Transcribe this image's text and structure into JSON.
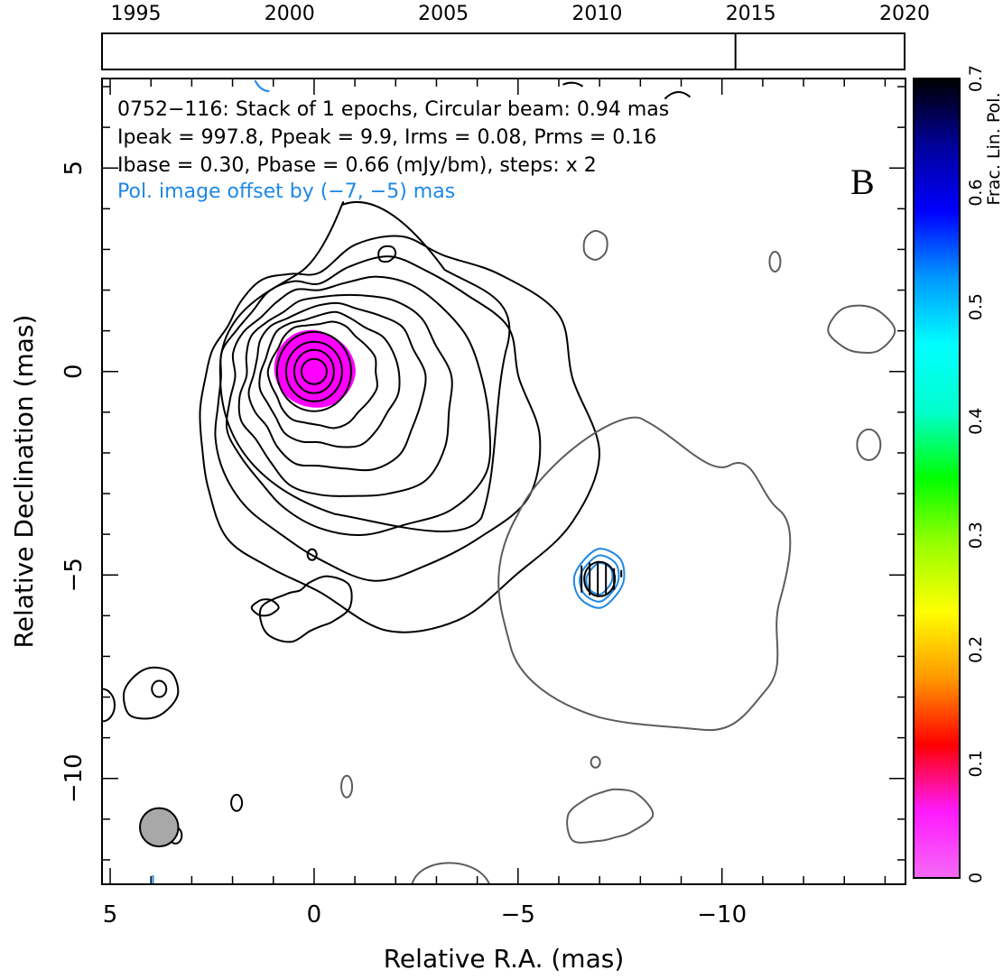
{
  "timeline": {
    "tick_labels": [
      "1995",
      "2000",
      "2005",
      "2010",
      "2015",
      "2020"
    ],
    "tick_years": [
      1995,
      2000,
      2005,
      2010,
      2015,
      2020
    ],
    "range": [
      1993.9,
      2020.0
    ],
    "epoch_years": [
      2014.5
    ]
  },
  "annotation": {
    "line1": "0752−116: Stack of 1 epochs, Circular beam: 0.94 mas",
    "line2": "Ipeak = 997.8, Ppeak = 9.9, Irms = 0.08, Prms = 0.16",
    "line3": "Ibase = 0.30, Pbase = 0.66 (mJy/bm), steps: x 2",
    "line4": "Pol. image offset by (−7, −5) mas",
    "panel_letter": "B"
  },
  "colors": {
    "total_intensity_contours": "#000000",
    "offset_image_contours": "#5c5c5c",
    "polarization_contours": "#1e88e5",
    "offset_text": "#1e88e5",
    "core_fill": "#ff00ff",
    "beam_fill": "#a8a8a8"
  },
  "colorbar": {
    "label": "Frac. Lin. Pol.",
    "tick_labels": [
      "0",
      "0.1",
      "0.2",
      "0.3",
      "0.4",
      "0.5",
      "0.6",
      "0.7"
    ],
    "range": [
      0,
      0.7
    ],
    "colormap": [
      "#f569f5",
      "#ff1aff",
      "#ff0000",
      "#ff9900",
      "#ffff00",
      "#99ff00",
      "#00ff00",
      "#00ffcc",
      "#00ffff",
      "#0099ff",
      "#0000ff",
      "#000099",
      "#000000"
    ]
  },
  "chart_data": {
    "type": "contour",
    "title": "",
    "xlabel": "Relative R.A. (mas)",
    "ylabel": "Relative Declination (mas)",
    "x_tick_labels": [
      "5",
      "0",
      "−5",
      "−10"
    ],
    "x_ticks": [
      5,
      0,
      -5,
      -10
    ],
    "y_tick_labels": [
      "5",
      "0",
      "−5",
      "−10"
    ],
    "y_ticks": [
      5,
      0,
      -5,
      -10
    ],
    "xlim": [
      5.2,
      -14.5
    ],
    "ylim": [
      -12.6,
      7.2
    ],
    "core": {
      "ra": 0,
      "dec": 0,
      "peak_mJy_per_beam": 997.8,
      "frac_pol": 0.02
    },
    "contour_base_mJy_per_beam": 0.3,
    "contour_step_factor": 2,
    "beam": {
      "ra": 3.8,
      "dec": -11.2,
      "fwhm_mas": 0.94
    },
    "polarized_component": {
      "ra": -7.0,
      "dec": -5.1,
      "peak_mJy_per_beam": 9.9
    }
  }
}
